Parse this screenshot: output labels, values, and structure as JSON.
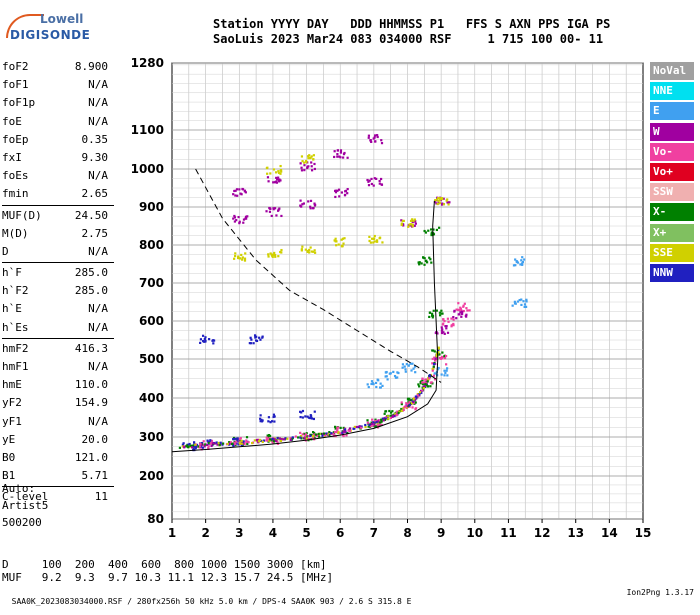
{
  "logo": {
    "line1": "Lowell",
    "line2": "DIGISONDE"
  },
  "header": {
    "line1": "Station YYYY DAY   DDD HHMMSS P1   FFS S AXN PPS IGA PS",
    "line2": "SaoLuis 2023 Mar24 083 034000 RSF     1 715 100 00- 11"
  },
  "params": [
    {
      "k": "foF2",
      "v": "8.900"
    },
    {
      "k": "foF1",
      "v": "N/A"
    },
    {
      "k": "foF1p",
      "v": "N/A"
    },
    {
      "k": "foE",
      "v": "N/A"
    },
    {
      "k": "foEp",
      "v": "0.35"
    },
    {
      "k": "fxI",
      "v": "9.30"
    },
    {
      "k": "foEs",
      "v": "N/A"
    },
    {
      "k": "fmin",
      "v": "2.65"
    },
    {
      "k": "MUF(D)",
      "v": "24.50"
    },
    {
      "k": "M(D)",
      "v": "2.75"
    },
    {
      "k": "D",
      "v": "N/A"
    },
    {
      "k": "h`F",
      "v": "285.0"
    },
    {
      "k": "h`F2",
      "v": "285.0"
    },
    {
      "k": "h`E",
      "v": "N/A"
    },
    {
      "k": "h`Es",
      "v": "N/A"
    },
    {
      "k": "hmF2",
      "v": "416.3"
    },
    {
      "k": "hmF1",
      "v": "N/A"
    },
    {
      "k": "hmE",
      "v": "110.0"
    },
    {
      "k": "yF2",
      "v": "154.9"
    },
    {
      "k": "yF1",
      "v": "N/A"
    },
    {
      "k": "yE",
      "v": "20.0"
    },
    {
      "k": "B0",
      "v": "121.0"
    },
    {
      "k": "B1",
      "v": "5.71"
    },
    {
      "k": "C-level",
      "v": "11"
    }
  ],
  "auto": [
    "Auto:",
    "Artist5",
    "500200"
  ],
  "bottom": {
    "d_line": "D     100  200  400  600  800 1000 1500 3000 [km]",
    "muf_line": "MUF   9.2  9.3  9.7 10.3 11.1 12.3 15.7 24.5 [MHz]"
  },
  "footer": {
    "left": "SAA0K_2023083034000.RSF / 280fx256h 50 kHz 5.0 km / DPS-4 SAA0K 903 / 2.6 S 315.8 E",
    "right": "Ion2Png 1.3.17"
  },
  "legend": [
    {
      "label": "NoVal",
      "color": "#a0a0a0"
    },
    {
      "label": "NNE",
      "color": "#00e0f0"
    },
    {
      "label": "E",
      "color": "#40a0f0"
    },
    {
      "label": "W",
      "color": "#a000a0"
    },
    {
      "label": "Vo-",
      "color": "#f040a0"
    },
    {
      "label": "Vo+",
      "color": "#e00020"
    },
    {
      "label": "SSW",
      "color": "#f0b0b0"
    },
    {
      "label": "X-",
      "color": "#008000"
    },
    {
      "label": "X+",
      "color": "#80c060"
    },
    {
      "label": "SSE",
      "color": "#d0d000"
    },
    {
      "label": "NNW",
      "color": "#2020c0"
    }
  ],
  "chart_data": {
    "type": "scatter",
    "xlabel": "",
    "ylabel": "",
    "xlim": [
      1,
      15
    ],
    "ylim": [
      80,
      1280
    ],
    "x_ticks": [
      1,
      2,
      3,
      4,
      5,
      6,
      7,
      8,
      9,
      10,
      11,
      12,
      13,
      14,
      15
    ],
    "y_ticks": [
      80,
      200,
      300,
      400,
      500,
      600,
      700,
      800,
      900,
      1000,
      1100,
      1280
    ],
    "grid": true,
    "series": [
      {
        "name": "X-",
        "color": "#008000",
        "values": [
          [
            3.0,
            292
          ],
          [
            4.0,
            297
          ],
          [
            5.0,
            305
          ],
          [
            6.0,
            318
          ],
          [
            7.0,
            340
          ],
          [
            7.5,
            360
          ],
          [
            8.0,
            390
          ],
          [
            8.5,
            440
          ],
          [
            8.9,
            520
          ],
          [
            8.8,
            620
          ],
          [
            8.5,
            760
          ],
          [
            8.7,
            840
          ]
        ]
      },
      {
        "name": "Vo-",
        "color": "#f040a0",
        "values": [
          [
            2.0,
            282
          ],
          [
            3.0,
            290
          ],
          [
            4.0,
            295
          ],
          [
            5.0,
            303
          ],
          [
            6.0,
            316
          ],
          [
            7.0,
            338
          ],
          [
            8.0,
            385
          ],
          [
            8.6,
            450
          ],
          [
            8.9,
            500
          ],
          [
            9.2,
            600
          ],
          [
            9.6,
            640
          ]
        ]
      },
      {
        "name": "W",
        "color": "#a000a0",
        "values": [
          [
            3.0,
            940
          ],
          [
            4.0,
            975
          ],
          [
            5.0,
            1010
          ],
          [
            6.0,
            1040
          ],
          [
            7.0,
            1080
          ],
          [
            3.0,
            870
          ],
          [
            4.0,
            890
          ],
          [
            5.0,
            910
          ],
          [
            6.0,
            940
          ],
          [
            7.0,
            970
          ],
          [
            8.0,
            860
          ],
          [
            9.0,
            920
          ],
          [
            9.5,
            620
          ],
          [
            9.0,
            580
          ]
        ]
      },
      {
        "name": "NNW",
        "color": "#2020c0",
        "values": [
          [
            1.5,
            280
          ],
          [
            2.0,
            284
          ],
          [
            3.0,
            290
          ],
          [
            3.8,
            350
          ],
          [
            5.0,
            360
          ],
          [
            3.5,
            555
          ],
          [
            2.0,
            555
          ]
        ]
      },
      {
        "name": "SSE",
        "color": "#d0d000",
        "values": [
          [
            3.0,
            770
          ],
          [
            4.0,
            780
          ],
          [
            5.0,
            790
          ],
          [
            6.0,
            810
          ],
          [
            7.0,
            820
          ],
          [
            4.0,
            1000
          ],
          [
            5.0,
            1030
          ],
          [
            8.0,
            860
          ],
          [
            9.0,
            920
          ]
        ]
      },
      {
        "name": "E",
        "color": "#40a0f0",
        "values": [
          [
            7.0,
            440
          ],
          [
            7.5,
            460
          ],
          [
            8.0,
            480
          ],
          [
            9.0,
            470
          ],
          [
            11.3,
            650
          ],
          [
            11.3,
            760
          ]
        ]
      }
    ],
    "curves": [
      {
        "name": "profile",
        "points": [
          [
            1.0,
            262
          ],
          [
            2.0,
            268
          ],
          [
            3.0,
            275
          ],
          [
            4.0,
            282
          ],
          [
            5.0,
            292
          ],
          [
            6.0,
            305
          ],
          [
            7.0,
            322
          ],
          [
            8.0,
            352
          ],
          [
            8.6,
            385
          ],
          [
            8.85,
            420
          ],
          [
            8.9,
            500
          ],
          [
            8.85,
            600
          ],
          [
            8.8,
            700
          ],
          [
            8.75,
            850
          ],
          [
            8.8,
            916
          ]
        ]
      },
      {
        "name": "dashed",
        "points": [
          [
            1.7,
            1000
          ],
          [
            2.5,
            870
          ],
          [
            3.5,
            760
          ],
          [
            4.5,
            680
          ],
          [
            5.5,
            630
          ],
          [
            6.5,
            575
          ],
          [
            7.5,
            520
          ],
          [
            8.3,
            480
          ],
          [
            9.0,
            440
          ]
        ]
      }
    ]
  }
}
